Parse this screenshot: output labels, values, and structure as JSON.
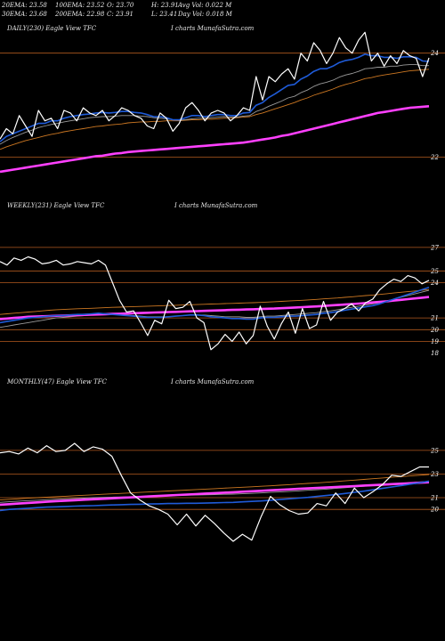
{
  "header": {
    "row1": [
      {
        "label": "20EMA: 23.58"
      },
      {
        "label": "100EMA: 23.52"
      },
      {
        "label": "O: 23.70"
      },
      {
        "label": "H: 23.91"
      },
      {
        "label": "Avg Vol: 0.022  M"
      }
    ],
    "row2": [
      {
        "label": "30EMA: 23.68"
      },
      {
        "label": "200EMA: 22.98"
      },
      {
        "label": "C: 23.91"
      },
      {
        "label": "L: 23.41"
      },
      {
        "label": "Day Vol: 0.018  M"
      }
    ]
  },
  "panels": [
    {
      "title": "DAILY(230) Eagle   View  TFC",
      "source": "I charts MunafaSutra.com"
    },
    {
      "title": "WEEKLY(231) Eagle   View  TFC",
      "source": "I charts MunafaSutra.com"
    },
    {
      "title": "MONTHLY(47) Eagle   View  TFC",
      "source": "I charts MunafaSutra.com"
    }
  ],
  "colors": {
    "price": "#ffffff",
    "ema_fast": "#1f5bd8",
    "ema_slow": "#cc7722",
    "ema_long": "#ff40ff",
    "level_line": "#b35a1f",
    "background": "#000000"
  },
  "chart_data": [
    {
      "type": "line",
      "title": "DAILY(230) Eagle   View  TFC",
      "ylim": [
        21.6,
        24.2
      ],
      "ticks": [
        24,
        22
      ],
      "level_lines": [
        24,
        22
      ],
      "grid": false,
      "series": [
        {
          "role": "price",
          "values": [
            22.35,
            22.55,
            22.45,
            22.8,
            22.6,
            22.4,
            22.9,
            22.7,
            22.75,
            22.55,
            22.9,
            22.85,
            22.7,
            22.95,
            22.85,
            22.8,
            22.9,
            22.7,
            22.8,
            22.95,
            22.9,
            22.8,
            22.75,
            22.6,
            22.55,
            22.85,
            22.75,
            22.5,
            22.65,
            22.95,
            23.05,
            22.9,
            22.7,
            22.85,
            22.9,
            22.85,
            22.7,
            22.8,
            22.95,
            22.9,
            23.55,
            23.1,
            23.55,
            23.45,
            23.6,
            23.7,
            23.5,
            24.0,
            23.85,
            24.2,
            24.05,
            23.8,
            24.0,
            24.3,
            24.1,
            24.0,
            24.25,
            24.4,
            23.85,
            24.0,
            23.75,
            23.95,
            23.8,
            24.05,
            23.95,
            23.9,
            23.55,
            23.91
          ]
        },
        {
          "role": "ema_fast",
          "values": [
            22.3,
            22.4,
            22.45,
            22.5,
            22.55,
            22.6,
            22.65,
            22.65,
            22.7,
            22.7,
            22.75,
            22.78,
            22.8,
            22.82,
            22.83,
            22.85,
            22.86,
            22.85,
            22.86,
            22.88,
            22.88,
            22.86,
            22.85,
            22.82,
            22.78,
            22.78,
            22.76,
            22.72,
            22.72,
            22.76,
            22.8,
            22.8,
            22.78,
            22.8,
            22.82,
            22.82,
            22.8,
            22.8,
            22.85,
            22.86,
            23.0,
            23.05,
            23.15,
            23.22,
            23.3,
            23.38,
            23.4,
            23.5,
            23.56,
            23.65,
            23.7,
            23.7,
            23.75,
            23.82,
            23.86,
            23.88,
            23.92,
            23.98,
            23.95,
            23.95,
            23.92,
            23.92,
            23.9,
            23.93,
            23.93,
            23.92,
            23.85,
            23.84
          ]
        },
        {
          "role": "ema_mid",
          "values": [
            22.25,
            22.32,
            22.38,
            22.43,
            22.48,
            22.52,
            22.57,
            22.6,
            22.63,
            22.65,
            22.68,
            22.7,
            22.72,
            22.74,
            22.76,
            22.77,
            22.78,
            22.78,
            22.79,
            22.8,
            22.8,
            22.8,
            22.79,
            22.78,
            22.76,
            22.75,
            22.74,
            22.72,
            22.71,
            22.72,
            22.74,
            22.75,
            22.75,
            22.76,
            22.77,
            22.78,
            22.77,
            22.77,
            22.79,
            22.8,
            22.88,
            22.92,
            22.98,
            23.03,
            23.08,
            23.14,
            23.17,
            23.24,
            23.29,
            23.36,
            23.41,
            23.44,
            23.48,
            23.54,
            23.58,
            23.61,
            23.65,
            23.7,
            23.71,
            23.73,
            23.73,
            23.75,
            23.75,
            23.77,
            23.78,
            23.78,
            23.76,
            23.76
          ]
        },
        {
          "role": "ema_slow",
          "values": [
            22.15,
            22.2,
            22.24,
            22.28,
            22.32,
            22.35,
            22.38,
            22.41,
            22.44,
            22.46,
            22.49,
            22.51,
            22.53,
            22.55,
            22.57,
            22.59,
            22.6,
            22.62,
            22.63,
            22.64,
            22.66,
            22.67,
            22.68,
            22.68,
            22.69,
            22.69,
            22.7,
            22.7,
            22.7,
            22.71,
            22.72,
            22.72,
            22.73,
            22.73,
            22.74,
            22.75,
            22.75,
            22.76,
            22.77,
            22.78,
            22.82,
            22.85,
            22.89,
            22.93,
            22.97,
            23.01,
            23.05,
            23.1,
            23.14,
            23.19,
            23.23,
            23.27,
            23.31,
            23.36,
            23.4,
            23.43,
            23.47,
            23.51,
            23.53,
            23.56,
            23.58,
            23.6,
            23.62,
            23.64,
            23.66,
            23.67,
            23.68,
            23.69
          ]
        },
        {
          "role": "ema_long",
          "values": [
            21.72,
            21.74,
            21.76,
            21.78,
            21.8,
            21.82,
            21.84,
            21.86,
            21.88,
            21.9,
            21.92,
            21.94,
            21.96,
            21.98,
            22.0,
            22.02,
            22.03,
            22.05,
            22.07,
            22.08,
            22.1,
            22.11,
            22.12,
            22.13,
            22.14,
            22.15,
            22.16,
            22.17,
            22.18,
            22.19,
            22.2,
            22.21,
            22.22,
            22.23,
            22.24,
            22.25,
            22.26,
            22.27,
            22.28,
            22.3,
            22.32,
            22.34,
            22.36,
            22.38,
            22.41,
            22.43,
            22.46,
            22.49,
            22.52,
            22.55,
            22.58,
            22.61,
            22.64,
            22.67,
            22.7,
            22.73,
            22.76,
            22.79,
            22.82,
            22.85,
            22.87,
            22.89,
            22.91,
            22.93,
            22.95,
            22.96,
            22.97,
            22.98
          ]
        }
      ]
    },
    {
      "type": "line",
      "title": "WEEKLY(231) Eagle   View  TFC",
      "ylim": [
        17.6,
        27.6
      ],
      "ticks": [
        27,
        25,
        24,
        21,
        20,
        19,
        18
      ],
      "level_lines": [
        27,
        25,
        24,
        21,
        20,
        19
      ],
      "grid": false,
      "series": [
        {
          "role": "price",
          "values": [
            25.8,
            25.5,
            26.1,
            25.9,
            26.2,
            26.0,
            25.6,
            25.7,
            25.9,
            25.5,
            25.6,
            25.8,
            25.7,
            25.6,
            25.9,
            25.5,
            24.0,
            22.5,
            21.5,
            21.6,
            20.6,
            19.5,
            20.8,
            20.5,
            22.5,
            21.8,
            21.9,
            22.4,
            21.0,
            20.6,
            18.3,
            18.8,
            19.6,
            19.0,
            19.8,
            18.8,
            19.5,
            22.0,
            20.3,
            19.2,
            20.5,
            21.5,
            19.7,
            21.8,
            20.1,
            20.4,
            22.4,
            20.8,
            21.5,
            21.8,
            22.2,
            21.6,
            22.3,
            22.6,
            23.4,
            23.9,
            24.3,
            24.1,
            24.6,
            24.4,
            23.9,
            24.2
          ]
        },
        {
          "role": "ema_fast",
          "values": [
            20.6,
            20.7,
            20.8,
            20.9,
            21.0,
            21.05,
            21.1,
            21.15,
            21.2,
            21.2,
            21.25,
            21.3,
            21.3,
            21.35,
            21.4,
            21.35,
            21.3,
            21.25,
            21.2,
            21.15,
            21.1,
            21.05,
            21.05,
            21.05,
            21.1,
            21.15,
            21.2,
            21.25,
            21.25,
            21.2,
            21.1,
            21.05,
            21.0,
            20.95,
            20.95,
            20.9,
            20.9,
            21.0,
            21.05,
            21.05,
            21.1,
            21.15,
            21.15,
            21.2,
            21.25,
            21.3,
            21.4,
            21.45,
            21.55,
            21.65,
            21.75,
            21.85,
            21.95,
            22.05,
            22.2,
            22.4,
            22.6,
            22.8,
            23.0,
            23.2,
            23.4,
            23.6
          ]
        },
        {
          "role": "ema_mid",
          "values": [
            20.2,
            20.3,
            20.4,
            20.5,
            20.6,
            20.7,
            20.8,
            20.9,
            21.0,
            21.05,
            21.1,
            21.15,
            21.2,
            21.25,
            21.3,
            21.3,
            21.3,
            21.3,
            21.25,
            21.2,
            21.15,
            21.1,
            21.1,
            21.1,
            21.1,
            21.15,
            21.2,
            21.25,
            21.25,
            21.25,
            21.2,
            21.15,
            21.1,
            21.1,
            21.1,
            21.05,
            21.05,
            21.1,
            21.15,
            21.15,
            21.2,
            21.25,
            21.3,
            21.35,
            21.4,
            21.45,
            21.55,
            21.6,
            21.7,
            21.8,
            21.9,
            22.0,
            22.1,
            22.2,
            22.3,
            22.45,
            22.6,
            22.75,
            22.9,
            23.05,
            23.2,
            23.35
          ]
        },
        {
          "role": "ema_slow",
          "values": [
            21.3,
            21.35,
            21.4,
            21.45,
            21.5,
            21.55,
            21.6,
            21.65,
            21.7,
            21.72,
            21.75,
            21.78,
            21.8,
            21.82,
            21.85,
            21.87,
            21.9,
            21.92,
            21.94,
            21.96,
            21.98,
            22.0,
            22.02,
            22.04,
            22.06,
            22.08,
            22.1,
            22.12,
            22.14,
            22.16,
            22.18,
            22.2,
            22.22,
            22.24,
            22.26,
            22.28,
            22.3,
            22.32,
            22.35,
            22.38,
            22.41,
            22.44,
            22.47,
            22.5,
            22.54,
            22.58,
            22.62,
            22.66,
            22.7,
            22.75,
            22.8,
            22.85,
            22.9,
            22.95,
            23.0,
            23.06,
            23.12,
            23.18,
            23.24,
            23.3,
            23.36,
            23.42
          ]
        },
        {
          "role": "ema_long",
          "values": [
            20.9,
            20.95,
            21.0,
            21.05,
            21.1,
            21.12,
            21.14,
            21.16,
            21.18,
            21.2,
            21.22,
            21.24,
            21.26,
            21.28,
            21.3,
            21.32,
            21.34,
            21.36,
            21.38,
            21.4,
            21.42,
            21.44,
            21.46,
            21.48,
            21.5,
            21.52,
            21.54,
            21.56,
            21.58,
            21.6,
            21.62,
            21.64,
            21.66,
            21.68,
            21.7,
            21.72,
            21.74,
            21.76,
            21.78,
            21.8,
            21.83,
            21.86,
            21.89,
            21.92,
            21.95,
            21.98,
            22.02,
            22.06,
            22.1,
            22.14,
            22.18,
            22.22,
            22.27,
            22.32,
            22.37,
            22.42,
            22.48,
            22.54,
            22.6,
            22.66,
            22.72,
            22.78
          ]
        }
      ]
    },
    {
      "type": "line",
      "title": "MONTHLY(47) Eagle   View  TFC",
      "ylim": [
        17.0,
        26.2
      ],
      "ticks": [
        25,
        23,
        21,
        20
      ],
      "level_lines": [
        25,
        23,
        21,
        20
      ],
      "grid": false,
      "series": [
        {
          "role": "price",
          "values": [
            24.8,
            24.9,
            24.7,
            25.2,
            24.8,
            25.4,
            24.9,
            25.0,
            25.6,
            24.9,
            25.3,
            25.1,
            24.5,
            22.9,
            21.4,
            20.8,
            20.3,
            20.0,
            19.6,
            18.7,
            19.6,
            18.6,
            19.5,
            18.8,
            18.0,
            17.3,
            17.9,
            17.4,
            19.4,
            21.1,
            20.4,
            19.9,
            19.6,
            19.7,
            20.5,
            20.3,
            21.4,
            20.5,
            21.8,
            21.0,
            21.5,
            22.1,
            22.9,
            22.8,
            23.2,
            23.6,
            23.6
          ]
        },
        {
          "role": "ema_fast",
          "values": [
            19.9,
            20.0,
            20.05,
            20.1,
            20.15,
            20.2,
            20.22,
            20.25,
            20.28,
            20.3,
            20.32,
            20.35,
            20.38,
            20.4,
            20.42,
            20.44,
            20.46,
            20.48,
            20.5,
            20.5,
            20.52,
            20.52,
            20.54,
            20.56,
            20.58,
            20.6,
            20.64,
            20.68,
            20.72,
            20.78,
            20.84,
            20.9,
            20.96,
            21.02,
            21.1,
            21.18,
            21.26,
            21.35,
            21.45,
            21.55,
            21.66,
            21.78,
            21.9,
            22.02,
            22.14,
            22.26,
            22.4
          ]
        },
        {
          "role": "ema_mid",
          "values": [
            20.6,
            20.65,
            20.7,
            20.75,
            20.78,
            20.82,
            20.86,
            20.9,
            20.93,
            20.96,
            21.0,
            21.02,
            21.04,
            21.06,
            21.08,
            21.1,
            21.12,
            21.14,
            21.16,
            21.18,
            21.2,
            21.22,
            21.24,
            21.26,
            21.28,
            21.3,
            21.33,
            21.36,
            21.4,
            21.44,
            21.48,
            21.52,
            21.57,
            21.62,
            21.67,
            21.72,
            21.78,
            21.84,
            21.9,
            21.96,
            22.02,
            22.08,
            22.14,
            22.2,
            22.26,
            22.32,
            22.38
          ]
        },
        {
          "role": "ema_slow",
          "values": [
            20.8,
            20.85,
            20.9,
            20.95,
            21.0,
            21.04,
            21.08,
            21.12,
            21.16,
            21.2,
            21.24,
            21.28,
            21.32,
            21.36,
            21.4,
            21.44,
            21.48,
            21.52,
            21.56,
            21.6,
            21.64,
            21.68,
            21.72,
            21.76,
            21.8,
            21.84,
            21.88,
            21.92,
            21.96,
            22.0,
            22.05,
            22.1,
            22.15,
            22.2,
            22.25,
            22.3,
            22.36,
            22.42,
            22.48,
            22.54,
            22.6,
            22.66,
            22.72,
            22.78,
            22.84,
            22.9,
            22.96
          ]
        },
        {
          "role": "ema_long",
          "values": [
            20.4,
            20.45,
            20.5,
            20.55,
            20.6,
            20.65,
            20.7,
            20.74,
            20.78,
            20.82,
            20.86,
            20.9,
            20.94,
            20.98,
            21.02,
            21.06,
            21.1,
            21.14,
            21.18,
            21.22,
            21.26,
            21.3,
            21.34,
            21.38,
            21.42,
            21.46,
            21.5,
            21.54,
            21.58,
            21.62,
            21.66,
            21.7,
            21.74,
            21.78,
            21.82,
            21.86,
            21.9,
            21.94,
            21.98,
            22.02,
            22.06,
            22.1,
            22.14,
            22.18,
            22.22,
            22.26,
            22.3
          ]
        }
      ]
    }
  ]
}
